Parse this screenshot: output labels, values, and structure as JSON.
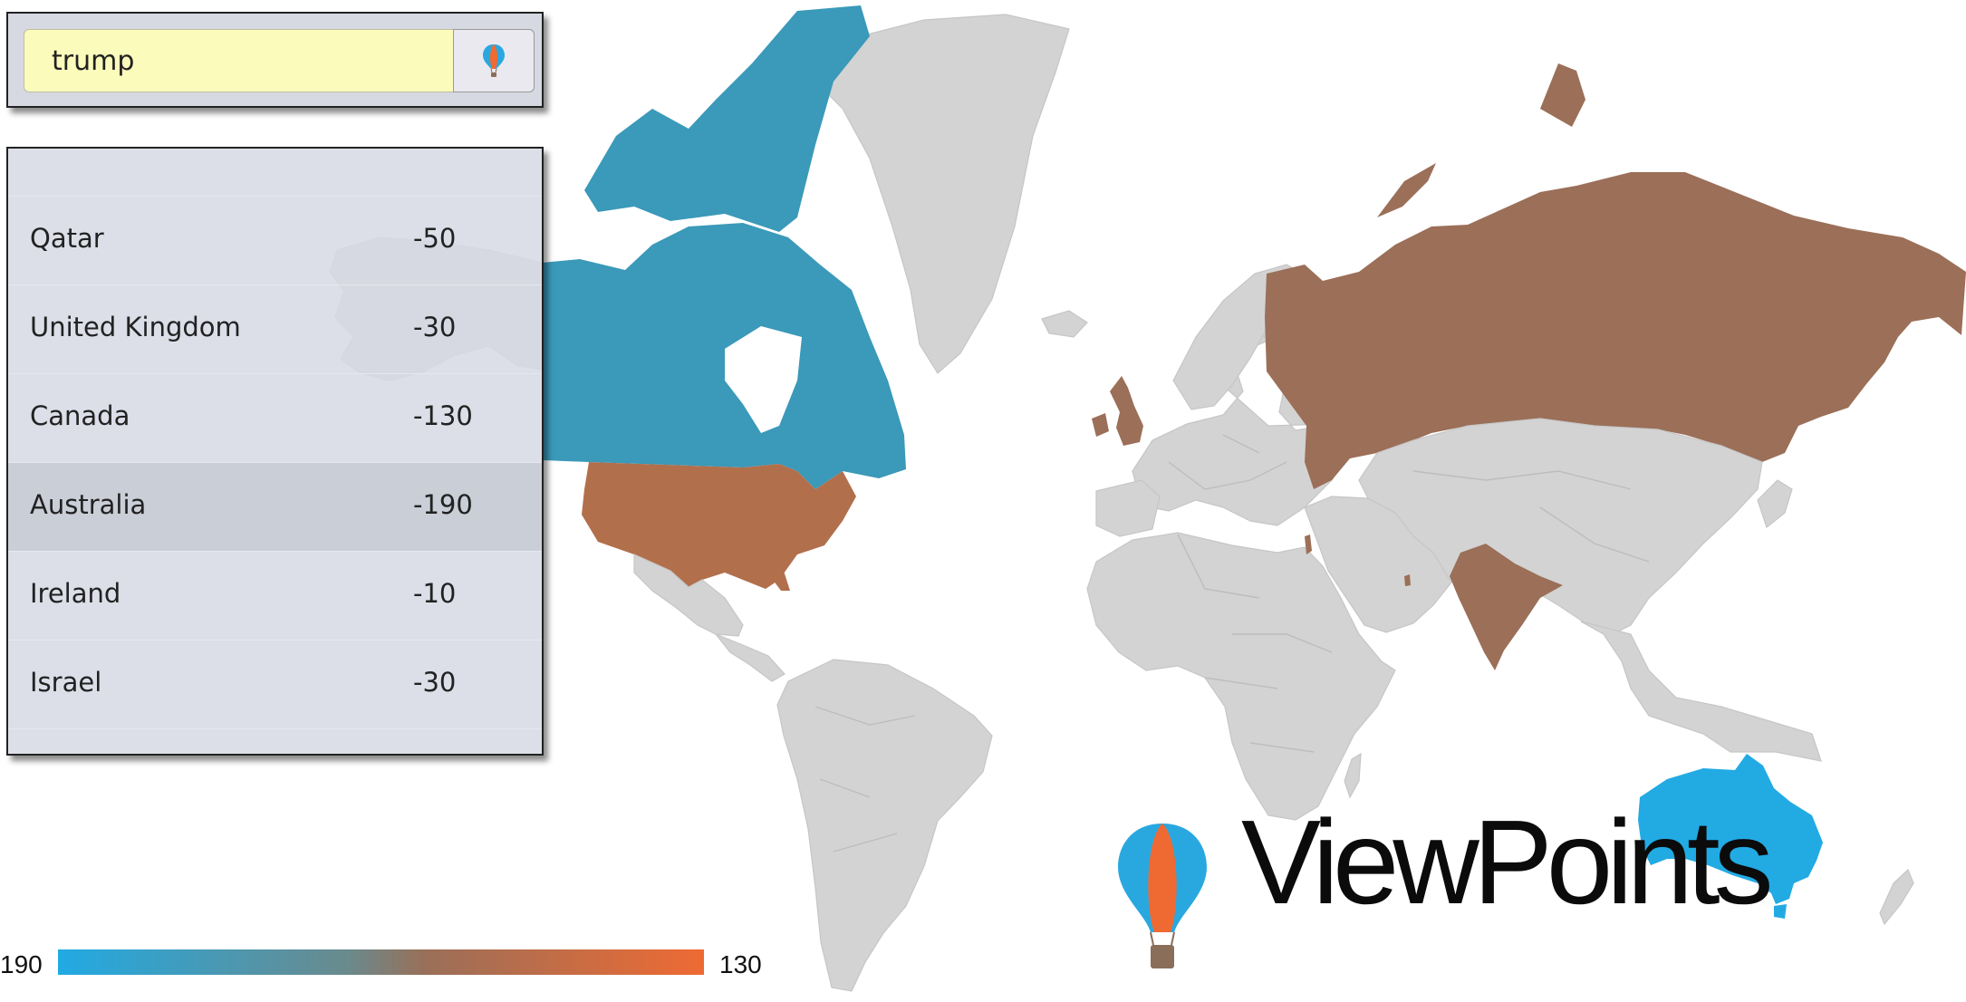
{
  "search": {
    "value": "trump",
    "button_icon": "balloon-icon"
  },
  "results": [
    {
      "country": "Qatar",
      "score": "-50"
    },
    {
      "country": "United Kingdom",
      "score": "-30"
    },
    {
      "country": "Canada",
      "score": "-130"
    },
    {
      "country": "Australia",
      "score": "-190",
      "highlighted": true
    },
    {
      "country": "Ireland",
      "score": "-10"
    },
    {
      "country": "Israel",
      "score": "-30"
    }
  ],
  "legend": {
    "min": "190",
    "max": "130",
    "color_low": "#21aae3",
    "color_high": "#ef6a33"
  },
  "brand": {
    "name": "ViewPoints",
    "icon": "hot-air-balloon-icon"
  },
  "map": {
    "land_color": "#d3d3d3",
    "highlighted_countries": [
      {
        "name": "Canada",
        "color": "#3b99b9"
      },
      {
        "name": "United States",
        "color": "#b26f4c"
      },
      {
        "name": "United Kingdom",
        "color": "#9b6f58"
      },
      {
        "name": "Russia",
        "color": "#9b6f58"
      },
      {
        "name": "India",
        "color": "#9b6f58"
      },
      {
        "name": "Australia",
        "color": "#22aae3"
      }
    ]
  }
}
